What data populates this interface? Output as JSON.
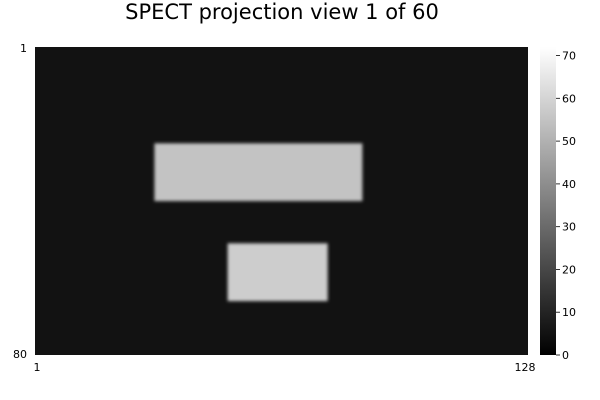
{
  "chart_data": {
    "type": "heatmap",
    "title": "SPECT projection view 1 of 60",
    "colormap": "grayscale",
    "background_value": 5,
    "x_ticks": [
      "1",
      "128"
    ],
    "y_ticks": [
      "1",
      "80"
    ],
    "xlim": [
      1,
      128
    ],
    "ylim": [
      1,
      80
    ],
    "grid": false,
    "colorbar": {
      "range": [
        0,
        72
      ],
      "ticks": [
        0,
        10,
        20,
        30,
        40,
        50,
        60,
        70
      ],
      "tick_labels": [
        "0",
        "10",
        "20",
        "30",
        "40",
        "50",
        "60",
        "70"
      ]
    },
    "regions": [
      {
        "name": "upper-rectangle",
        "x": [
          32,
          85
        ],
        "y": [
          26,
          40
        ],
        "value": 55
      },
      {
        "name": "lower-rectangle",
        "x": [
          51,
          76
        ],
        "y": [
          52,
          66
        ],
        "value": 58
      }
    ]
  }
}
